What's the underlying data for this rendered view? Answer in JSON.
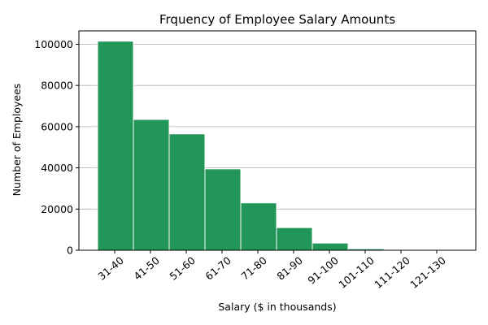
{
  "chart_data": {
    "type": "bar",
    "title": "Frquency of Employee Salary Amounts",
    "xlabel": "Salary ($ in thousands)",
    "ylabel": "Number of Employees",
    "categories": [
      "31-40",
      "41-50",
      "51-60",
      "61-70",
      "71-80",
      "81-90",
      "91-100",
      "101-110",
      "111-120",
      "121-130"
    ],
    "values": [
      101500,
      63500,
      56500,
      39500,
      23000,
      11000,
      3500,
      700,
      150,
      80
    ],
    "ylim": [
      0,
      106500
    ],
    "yticks": [
      0,
      20000,
      40000,
      60000,
      80000,
      100000
    ],
    "grid": "horizontal",
    "legend": "none",
    "bar_color": "#229659"
  }
}
